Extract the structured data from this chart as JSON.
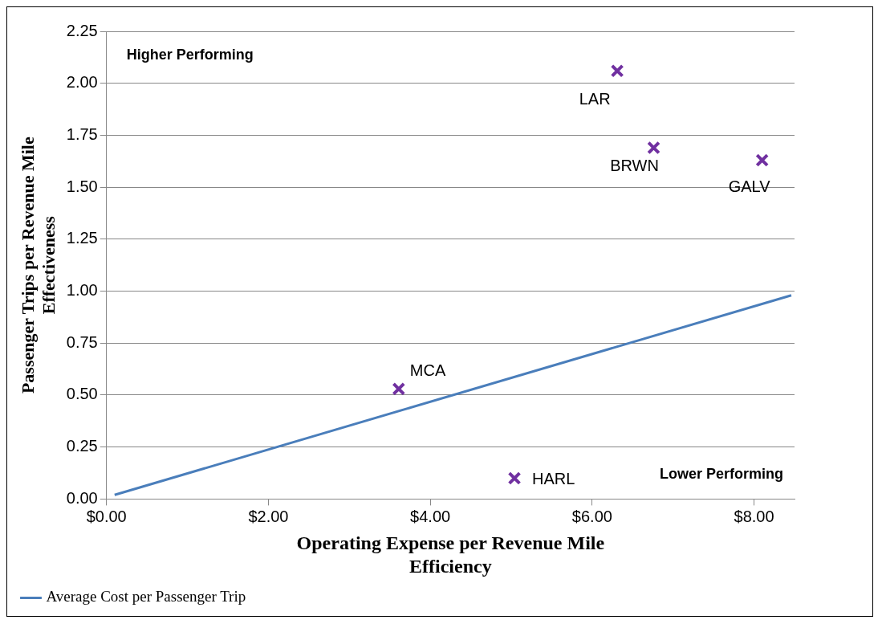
{
  "chart_data": {
    "type": "scatter",
    "xlabel": "Operating Expense per Revenue Mile Efficiency",
    "ylabel": "Passenger Trips per Revenue Mile Effectiveness",
    "xlim": [
      0,
      8.5
    ],
    "xticks": [
      {
        "value": 0,
        "label": "$0.00"
      },
      {
        "value": 2,
        "label": "$2.00"
      },
      {
        "value": 4,
        "label": "$4.00"
      },
      {
        "value": 6,
        "label": "$6.00"
      },
      {
        "value": 8,
        "label": "$8.00"
      }
    ],
    "ylim": [
      0,
      2.25
    ],
    "yticks": [
      {
        "value": 0,
        "label": "0.00"
      },
      {
        "value": 0.25,
        "label": "0.25"
      },
      {
        "value": 0.5,
        "label": "0.50"
      },
      {
        "value": 0.75,
        "label": "0.75"
      },
      {
        "value": 1,
        "label": "1.00"
      },
      {
        "value": 1.25,
        "label": "1.25"
      },
      {
        "value": 1.5,
        "label": "1.50"
      },
      {
        "value": 1.75,
        "label": "1.75"
      },
      {
        "value": 2,
        "label": "2.00"
      },
      {
        "value": 2.25,
        "label": "2.25"
      }
    ],
    "grid": "y",
    "legend": "bottom left",
    "marker": "cross",
    "series": [
      {
        "color": "#7030a0",
        "x": [
          6.31,
          6.76,
          8.1,
          3.61,
          5.04
        ],
        "values": [
          2.06,
          1.69,
          1.63,
          0.53,
          0.1
        ]
      },
      {
        "type": "line",
        "name": "Average Cost per Passenger Trip",
        "color": "#4a7ebb",
        "x": [
          0.1,
          8.46
        ],
        "values": [
          0.02,
          0.98
        ],
        "marker": "none",
        "line_style": "solid"
      }
    ],
    "annotations": [
      "Higher Performing",
      "Lower Performing",
      {
        "text": "LAR",
        "x": 6.31,
        "y": 2.06
      },
      {
        "text": "BRWN",
        "x": 6.76,
        "y": 1.69
      },
      {
        "text": "GALV",
        "x": 8.1,
        "y": 1.63
      },
      {
        "text": "MCA",
        "x": 3.61,
        "y": 0.53
      },
      {
        "text": "HARL",
        "x": 5.04,
        "y": 0.1
      }
    ]
  }
}
